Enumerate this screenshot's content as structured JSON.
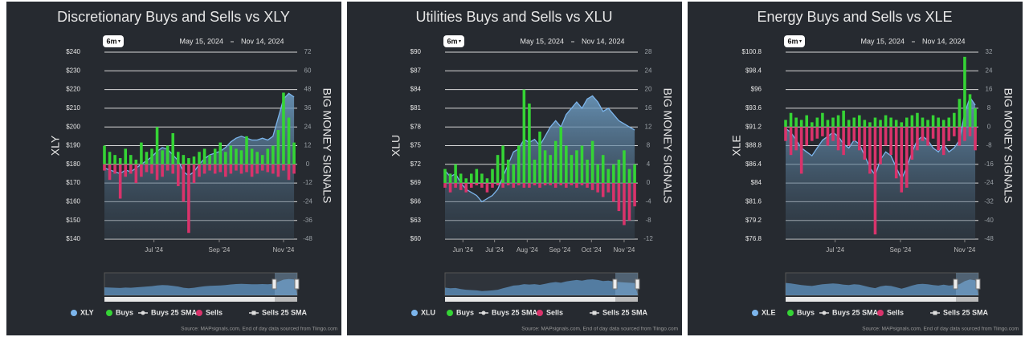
{
  "chart_data": [
    {
      "type": "combo",
      "title": "Discretionary Buys and Sells vs XLY",
      "range_button": "6m",
      "date_from": "May 15, 2024",
      "date_to": "Nov 14, 2024",
      "y_label": "XLY",
      "y2_label": "BIG MONEY SIGNALS",
      "x": [
        0,
        5,
        10,
        15,
        20,
        25,
        30,
        35,
        40,
        45,
        50,
        55,
        60,
        65,
        70,
        75,
        80,
        85,
        90,
        95,
        100,
        105,
        110,
        115,
        120,
        125,
        130,
        135,
        140,
        145,
        150,
        155,
        160,
        165,
        170,
        175,
        180
      ],
      "xlim": [
        0,
        183
      ],
      "xticks": [
        {
          "value": 47,
          "label": "Jul '24"
        },
        {
          "value": 109,
          "label": "Sep '24"
        },
        {
          "value": 170,
          "label": "Nov '24"
        }
      ],
      "ylim": [
        140,
        240
      ],
      "yticks": [
        {
          "value": 140,
          "label": "$140"
        },
        {
          "value": 150,
          "label": "$150"
        },
        {
          "value": 160,
          "label": "$160"
        },
        {
          "value": 170,
          "label": "$170"
        },
        {
          "value": 180,
          "label": "$180"
        },
        {
          "value": 190,
          "label": "$190"
        },
        {
          "value": 200,
          "label": "$200"
        },
        {
          "value": 210,
          "label": "$210"
        },
        {
          "value": 220,
          "label": "$220"
        },
        {
          "value": 230,
          "label": "$230"
        },
        {
          "value": 240,
          "label": "$240"
        }
      ],
      "y2lim": [
        -48,
        72
      ],
      "y2ticks": [
        -48,
        -36,
        -24,
        -12,
        0,
        12,
        24,
        36,
        48,
        60,
        72
      ],
      "series": [
        {
          "name": "XLY",
          "color": "#7cb5ec",
          "values": [
            178,
            177,
            176,
            175,
            177,
            176,
            178,
            180,
            182,
            184,
            187,
            189,
            188,
            185,
            182,
            176,
            174,
            176,
            180,
            183,
            185,
            186,
            187,
            189,
            192,
            194,
            195,
            194,
            193,
            193,
            194,
            193,
            195,
            205,
            215,
            218,
            216
          ]
        },
        {
          "name": "Buys",
          "color": "#35d435",
          "axis": "y2",
          "values": [
            12,
            8,
            6,
            4,
            10,
            6,
            3,
            14,
            8,
            10,
            24,
            9,
            12,
            20,
            8,
            6,
            4,
            5,
            8,
            10,
            6,
            10,
            14,
            8,
            12,
            10,
            9,
            18,
            10,
            8,
            6,
            10,
            12,
            22,
            46,
            30,
            14
          ]
        },
        {
          "name": "Sells",
          "color": "#d9336b",
          "axis": "y2",
          "values": [
            -4,
            -10,
            -6,
            -22,
            -8,
            -6,
            -12,
            -8,
            -5,
            -6,
            -10,
            -8,
            -4,
            -6,
            -14,
            -24,
            -44,
            -12,
            -8,
            -6,
            -4,
            -6,
            -5,
            -8,
            -6,
            -4,
            -6,
            -5,
            -8,
            -6,
            -4,
            -5,
            -6,
            -8,
            -4,
            -10,
            -6
          ]
        }
      ],
      "legend_extra": [
        "Buys 25 SMA",
        "Sells 25 SMA"
      ],
      "source": "Source: MAPsignals.com, End of day data sourced from Tiingo.com"
    },
    {
      "type": "combo",
      "title": "Utilities Buys and Sells vs XLU",
      "range_button": "6m",
      "date_from": "May 15, 2024",
      "date_to": "Nov 14, 2024",
      "y_label": "XLU",
      "y2_label": "BIG MONEY SIGNALS",
      "x": [
        0,
        5,
        10,
        15,
        20,
        25,
        30,
        35,
        40,
        45,
        50,
        55,
        60,
        65,
        70,
        75,
        80,
        85,
        90,
        95,
        100,
        105,
        110,
        115,
        120,
        125,
        130,
        135,
        140,
        145,
        150,
        155,
        160,
        165,
        170,
        175,
        180
      ],
      "xlim": [
        0,
        183
      ],
      "xticks": [
        {
          "value": 17,
          "label": "Jun '24"
        },
        {
          "value": 47,
          "label": "Jul '24"
        },
        {
          "value": 78,
          "label": "Aug '24"
        },
        {
          "value": 109,
          "label": "Sep '24"
        },
        {
          "value": 139,
          "label": "Oct '24"
        },
        {
          "value": 170,
          "label": "Nov '24"
        }
      ],
      "ylim": [
        60,
        90
      ],
      "yticks": [
        {
          "value": 60,
          "label": "$60"
        },
        {
          "value": 63,
          "label": "$63"
        },
        {
          "value": 66,
          "label": "$66"
        },
        {
          "value": 69,
          "label": "$69"
        },
        {
          "value": 72,
          "label": "$72"
        },
        {
          "value": 75,
          "label": "$75"
        },
        {
          "value": 78,
          "label": "$78"
        },
        {
          "value": 81,
          "label": "$81"
        },
        {
          "value": 84,
          "label": "$84"
        },
        {
          "value": 87,
          "label": "$87"
        },
        {
          "value": 90,
          "label": "$90"
        }
      ],
      "y2lim": [
        -12,
        28
      ],
      "y2ticks": [
        -12,
        -8,
        -4,
        0,
        4,
        8,
        12,
        16,
        20,
        24,
        28
      ],
      "series": [
        {
          "name": "XLU",
          "color": "#7cb5ec",
          "values": [
            71,
            70,
            70.5,
            69,
            68,
            67.5,
            67,
            66,
            66.5,
            67,
            68,
            70,
            72,
            74,
            74.5,
            76,
            75.5,
            76,
            75,
            76.5,
            78,
            79,
            78,
            80,
            81,
            82,
            81,
            82.5,
            83,
            82,
            80.5,
            81,
            80,
            79,
            78.5,
            78,
            77.5
          ]
        },
        {
          "name": "Buys",
          "color": "#35d435",
          "axis": "y2",
          "values": [
            3,
            2,
            4,
            2,
            1,
            2,
            3,
            2,
            1,
            3,
            6,
            8,
            5,
            4,
            8,
            20,
            17,
            5,
            11,
            7,
            6,
            9,
            12,
            8,
            6,
            7,
            8,
            5,
            9,
            4,
            6,
            3,
            4,
            5,
            7,
            3,
            4
          ]
        },
        {
          "name": "Sells",
          "color": "#d9336b",
          "axis": "y2",
          "values": [
            -1,
            -2,
            -1,
            -1.5,
            -2,
            -1,
            -0.5,
            -1,
            -2,
            -1,
            -0.5,
            -1,
            -0.5,
            -1,
            -0.5,
            -1,
            -1,
            -0.5,
            -1,
            -0.5,
            -0.5,
            -1,
            -0.5,
            -1,
            -0.5,
            -1,
            -0.5,
            -1,
            -1.5,
            -2,
            -3,
            -2,
            -4,
            -6,
            -9,
            -8,
            -5
          ]
        }
      ],
      "legend_extra": [
        "Buys 25 SMA",
        "Sells 25 SMA"
      ],
      "source": "Source: MAPsignals.com, End of day data sourced from Tiingo.com"
    },
    {
      "type": "combo",
      "title": "Energy Buys and Sells vs XLE",
      "range_button": "6m",
      "date_from": "May 15, 2024",
      "date_to": "Nov 14, 2024",
      "y_label": "XLE",
      "y2_label": "BIG MONEY SIGNALS",
      "x": [
        0,
        5,
        10,
        15,
        20,
        25,
        30,
        35,
        40,
        45,
        50,
        55,
        60,
        65,
        70,
        75,
        80,
        85,
        90,
        95,
        100,
        105,
        110,
        115,
        120,
        125,
        130,
        135,
        140,
        145,
        150,
        155,
        160,
        165,
        170,
        175,
        180
      ],
      "xlim": [
        0,
        183
      ],
      "xticks": [
        {
          "value": 47,
          "label": "Jul '24"
        },
        {
          "value": 109,
          "label": "Sep '24"
        },
        {
          "value": 170,
          "label": "Nov '24"
        }
      ],
      "ylim": [
        76.8,
        100.8
      ],
      "yticks": [
        {
          "value": 76.8,
          "label": "$76.8"
        },
        {
          "value": 79.2,
          "label": "$79.2"
        },
        {
          "value": 81.6,
          "label": "$81.6"
        },
        {
          "value": 84,
          "label": "$84"
        },
        {
          "value": 86.4,
          "label": "$86.4"
        },
        {
          "value": 88.8,
          "label": "$88.8"
        },
        {
          "value": 91.2,
          "label": "$91.2"
        },
        {
          "value": 93.6,
          "label": "$93.6"
        },
        {
          "value": 96,
          "label": "$96"
        },
        {
          "value": 98.4,
          "label": "$98.4"
        },
        {
          "value": 100.8,
          "label": "$100.8"
        }
      ],
      "y2lim": [
        -48,
        32
      ],
      "y2ticks": [
        -48,
        -40,
        -32,
        -24,
        -16,
        -8,
        0,
        8,
        16,
        24,
        32
      ],
      "series": [
        {
          "name": "XLE",
          "color": "#7cb5ec",
          "values": [
            91,
            90.5,
            89.5,
            88.5,
            88,
            87.5,
            88.5,
            89.5,
            90,
            90.5,
            90,
            89,
            88.5,
            89.5,
            89,
            87.5,
            86,
            85,
            87,
            88,
            87.5,
            86,
            84.5,
            86,
            88,
            89.5,
            90,
            89.5,
            88.5,
            88,
            89,
            88,
            88.5,
            89.5,
            93,
            95,
            94
          ]
        },
        {
          "name": "Buys",
          "color": "#35d435",
          "axis": "y2",
          "values": [
            3,
            6,
            4,
            3,
            5,
            2,
            4,
            6,
            3,
            4,
            5,
            7,
            3,
            4,
            5,
            3,
            2,
            4,
            3,
            5,
            4,
            3,
            2,
            4,
            5,
            6,
            4,
            3,
            5,
            4,
            3,
            4,
            6,
            12,
            30,
            14,
            8
          ]
        },
        {
          "name": "Sells",
          "color": "#d9336b",
          "axis": "y2",
          "values": [
            -6,
            -12,
            -10,
            -20,
            -8,
            -6,
            -5,
            -4,
            -8,
            -6,
            -10,
            -12,
            -8,
            -6,
            -10,
            -14,
            -20,
            -46,
            -16,
            -8,
            -12,
            -22,
            -28,
            -26,
            -14,
            -10,
            -6,
            -8,
            -5,
            -10,
            -12,
            -6,
            -4,
            -8,
            -6,
            -4,
            -10
          ]
        }
      ],
      "legend_extra": [
        "Buys 25 SMA",
        "Sells 25 SMA"
      ],
      "source": "Source: MAPsignals.com, End of day data sourced from Tiingo.com"
    }
  ]
}
